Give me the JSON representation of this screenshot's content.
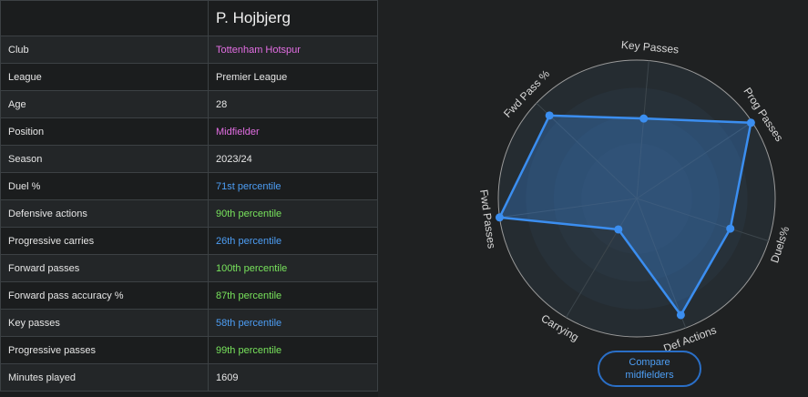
{
  "player": {
    "name": "P. Hojbjerg",
    "rows": [
      {
        "label": "Club",
        "value": "Tottenham Hotspur",
        "color": "pink"
      },
      {
        "label": "League",
        "value": "Premier League",
        "color": "white"
      },
      {
        "label": "Age",
        "value": "28",
        "color": "white"
      },
      {
        "label": "Position",
        "value": "Midfielder",
        "color": "pink"
      },
      {
        "label": "Season",
        "value": "2023/24",
        "color": "white"
      },
      {
        "label": "Duel %",
        "value": "71st percentile",
        "color": "blue"
      },
      {
        "label": "Defensive actions",
        "value": "90th percentile",
        "color": "green"
      },
      {
        "label": "Progressive carries",
        "value": "26th percentile",
        "color": "blue"
      },
      {
        "label": "Forward passes",
        "value": "100th percentile",
        "color": "green"
      },
      {
        "label": "Forward pass accuracy %",
        "value": "87th percentile",
        "color": "green"
      },
      {
        "label": "Key passes",
        "value": "58th percentile",
        "color": "blue"
      },
      {
        "label": "Progressive passes",
        "value": "99th percentile",
        "color": "green"
      },
      {
        "label": "Minutes played",
        "value": "1609",
        "color": "white"
      }
    ]
  },
  "colors": {
    "pink": "#e36ee3",
    "blue": "#4d9ef5",
    "green": "#78e35c",
    "series": "#3b8ef0"
  },
  "compare_button": {
    "label": "Compare midfielders"
  },
  "chart_data": {
    "type": "radar",
    "axes": [
      "Key Passes",
      "Prog Passes",
      "Duels%",
      "Def Actions",
      "Carrying",
      "Fwd Passes",
      "Fwd Pass %"
    ],
    "values": [
      58,
      99,
      71,
      90,
      26,
      100,
      87
    ],
    "range": [
      0,
      100
    ],
    "grid": true,
    "legend": "none"
  }
}
